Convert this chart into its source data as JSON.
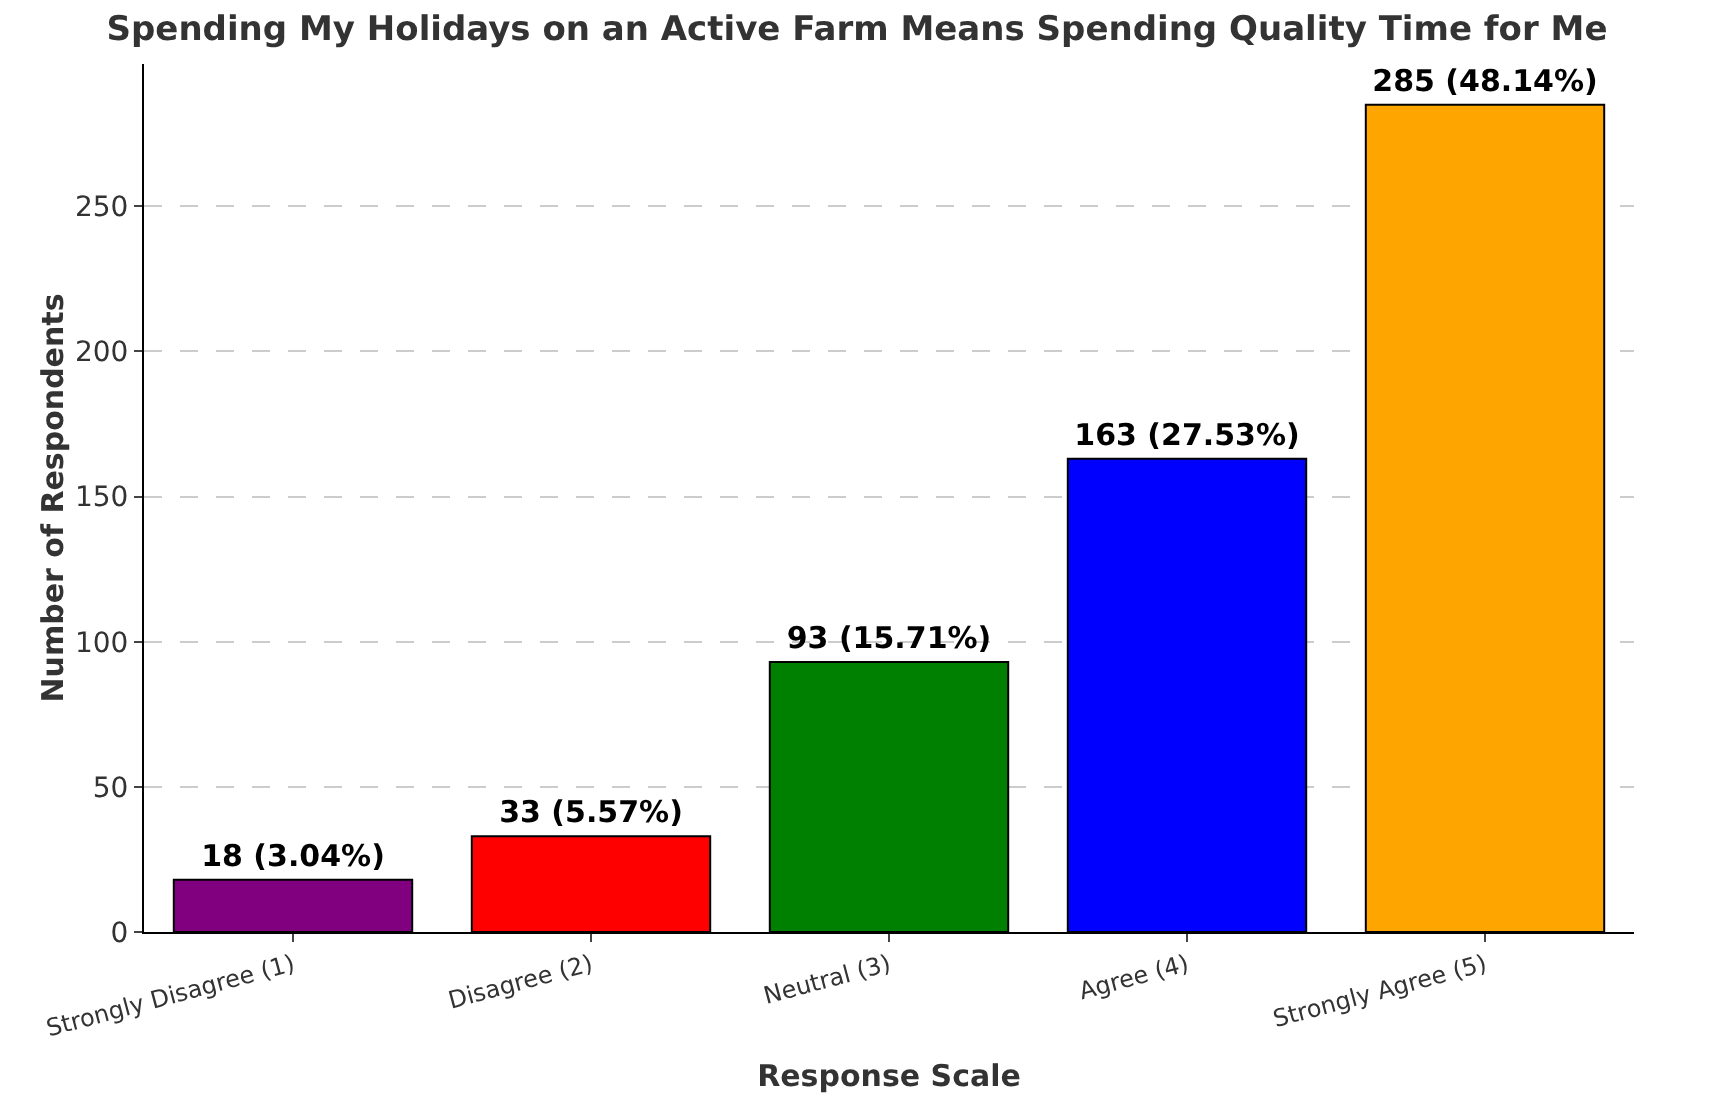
{
  "chart_data": {
    "type": "bar",
    "title": "Spending My Holidays on an Active Farm Means Spending Quality Time for Me",
    "xlabel": "Response Scale",
    "ylabel": "Number of Respondents",
    "categories": [
      "Strongly Disagree (1)",
      "Disagree (2)",
      "Neutral (3)",
      "Agree (4)",
      "Strongly Agree (5)"
    ],
    "values": [
      18,
      33,
      93,
      163,
      285
    ],
    "colors": [
      "#800080",
      "#ff0000",
      "#008000",
      "#0000ff",
      "#ffa500"
    ],
    "value_labels": [
      "18 (3.04%)",
      "33 (5.57%)",
      "93 (15.71%)",
      "163 (27.53%)",
      "285 (48.14%)"
    ],
    "ylim": [
      0,
      299
    ],
    "yticks": [
      0,
      50,
      100,
      150,
      200,
      250
    ],
    "grid": "y"
  }
}
